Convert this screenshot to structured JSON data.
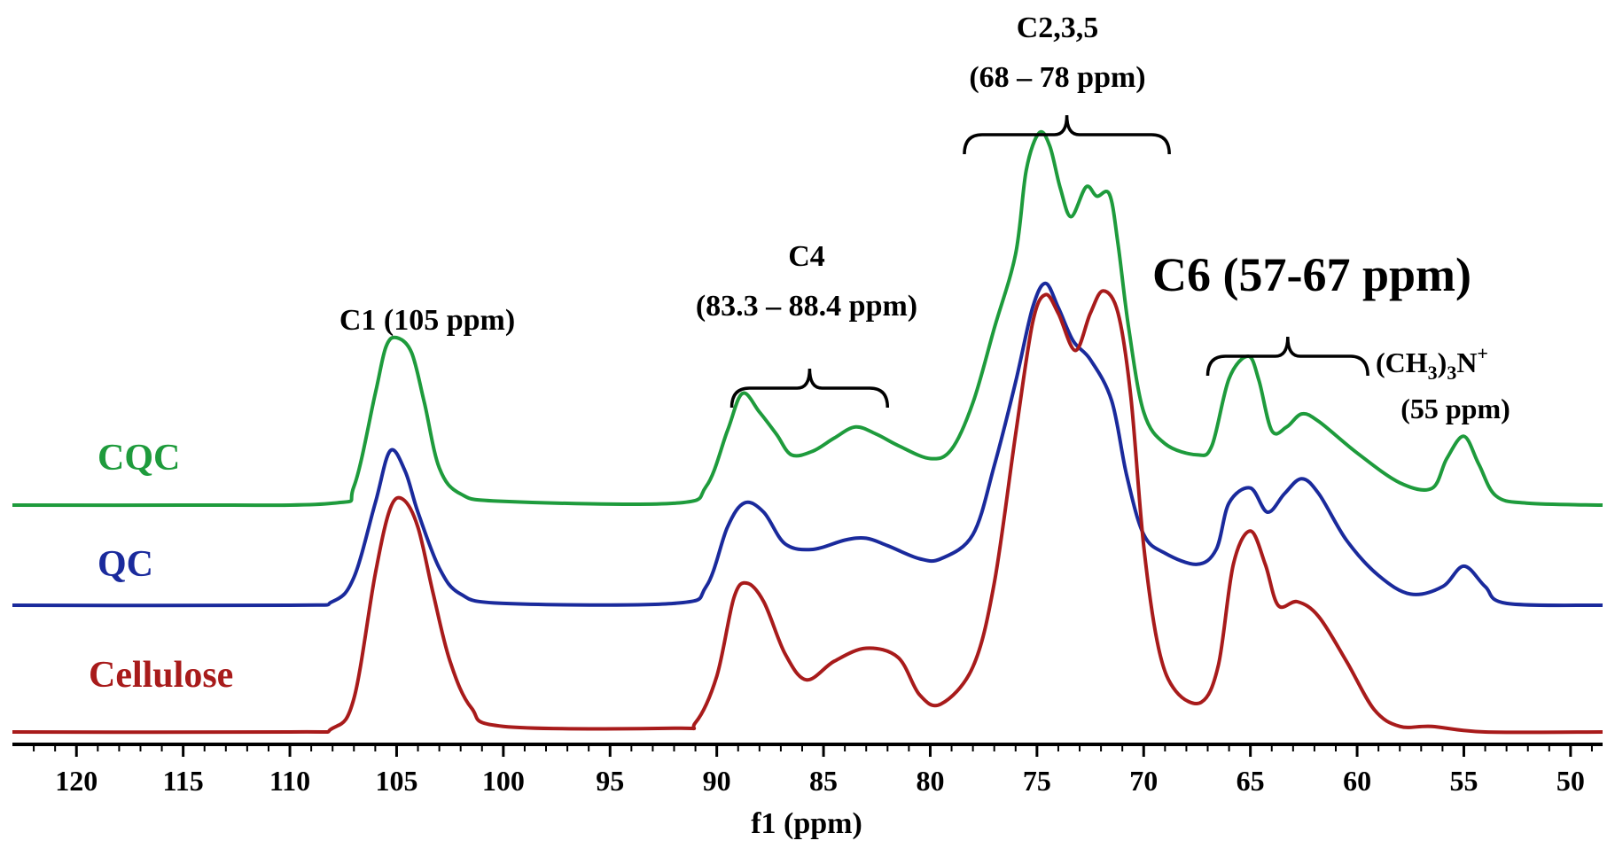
{
  "chart_data": {
    "type": "line",
    "xlabel": "f1 (ppm)",
    "xlim": [
      123,
      48.5
    ],
    "x_reversed": true,
    "xticks": [
      120,
      115,
      110,
      105,
      100,
      95,
      90,
      85,
      80,
      75,
      70,
      65,
      60,
      55,
      50
    ],
    "grid": false,
    "series": [
      {
        "name": "CQC",
        "color": "#1e9b3c",
        "baseline": 0,
        "points": [
          [
            123,
            0
          ],
          [
            115,
            0
          ],
          [
            108,
            0.01
          ],
          [
            107,
            0.1
          ],
          [
            106,
            0.6
          ],
          [
            105.5,
            0.85
          ],
          [
            105,
            0.9
          ],
          [
            104.3,
            0.82
          ],
          [
            103.7,
            0.55
          ],
          [
            103,
            0.2
          ],
          [
            102,
            0.06
          ],
          [
            100,
            0.02
          ],
          [
            92,
            0.01
          ],
          [
            90.5,
            0.1
          ],
          [
            89.5,
            0.4
          ],
          [
            88.8,
            0.6
          ],
          [
            88,
            0.5
          ],
          [
            87.2,
            0.38
          ],
          [
            86.5,
            0.27
          ],
          [
            85.5,
            0.29
          ],
          [
            84.5,
            0.36
          ],
          [
            83.5,
            0.42
          ],
          [
            82.5,
            0.38
          ],
          [
            81.5,
            0.32
          ],
          [
            80,
            0.25
          ],
          [
            79,
            0.3
          ],
          [
            78,
            0.55
          ],
          [
            77,
            0.95
          ],
          [
            76,
            1.35
          ],
          [
            75.5,
            1.8
          ],
          [
            74.9,
            2.0
          ],
          [
            74.4,
            1.93
          ],
          [
            73.9,
            1.7
          ],
          [
            73.4,
            1.55
          ],
          [
            72.7,
            1.71
          ],
          [
            72.2,
            1.66
          ],
          [
            71.6,
            1.67
          ],
          [
            71.2,
            1.4
          ],
          [
            70.7,
            0.95
          ],
          [
            70,
            0.5
          ],
          [
            69,
            0.33
          ],
          [
            67.5,
            0.27
          ],
          [
            66.8,
            0.32
          ],
          [
            66,
            0.68
          ],
          [
            65.1,
            0.8
          ],
          [
            64.6,
            0.67
          ],
          [
            64,
            0.4
          ],
          [
            63.3,
            0.42
          ],
          [
            62.6,
            0.49
          ],
          [
            61.8,
            0.45
          ],
          [
            60,
            0.28
          ],
          [
            58,
            0.12
          ],
          [
            56.5,
            0.09
          ],
          [
            55.8,
            0.25
          ],
          [
            55,
            0.37
          ],
          [
            54.3,
            0.22
          ],
          [
            53.5,
            0.05
          ],
          [
            52,
            0.01
          ],
          [
            48.5,
            0
          ]
        ]
      },
      {
        "name": "QC",
        "color": "#1a2a9c",
        "baseline": 0,
        "points": [
          [
            123,
            0
          ],
          [
            110,
            0
          ],
          [
            108,
            0.02
          ],
          [
            107,
            0.15
          ],
          [
            106,
            0.55
          ],
          [
            105.3,
            0.83
          ],
          [
            104.6,
            0.72
          ],
          [
            104,
            0.5
          ],
          [
            103,
            0.2
          ],
          [
            102,
            0.06
          ],
          [
            100,
            0.01
          ],
          [
            92,
            0.01
          ],
          [
            90.5,
            0.1
          ],
          [
            89.5,
            0.42
          ],
          [
            88.7,
            0.55
          ],
          [
            87.8,
            0.5
          ],
          [
            86.8,
            0.33
          ],
          [
            85.5,
            0.3
          ],
          [
            84,
            0.35
          ],
          [
            83,
            0.36
          ],
          [
            82,
            0.32
          ],
          [
            80.5,
            0.25
          ],
          [
            79.5,
            0.25
          ],
          [
            78,
            0.38
          ],
          [
            77,
            0.75
          ],
          [
            76,
            1.2
          ],
          [
            75.2,
            1.6
          ],
          [
            74.6,
            1.73
          ],
          [
            74,
            1.6
          ],
          [
            73.3,
            1.42
          ],
          [
            72.5,
            1.32
          ],
          [
            71.5,
            1.1
          ],
          [
            70.8,
            0.7
          ],
          [
            70,
            0.38
          ],
          [
            69,
            0.28
          ],
          [
            67.5,
            0.22
          ],
          [
            66.6,
            0.3
          ],
          [
            66,
            0.55
          ],
          [
            65,
            0.63
          ],
          [
            64.2,
            0.5
          ],
          [
            63.4,
            0.6
          ],
          [
            62.6,
            0.68
          ],
          [
            61.8,
            0.6
          ],
          [
            60.5,
            0.35
          ],
          [
            59,
            0.16
          ],
          [
            57.5,
            0.06
          ],
          [
            56,
            0.1
          ],
          [
            55,
            0.21
          ],
          [
            54,
            0.1
          ],
          [
            53,
            0.01
          ],
          [
            48.5,
            0
          ]
        ]
      },
      {
        "name": "Cellulose",
        "color": "#a81b1b",
        "baseline": 0,
        "points": [
          [
            123,
            0
          ],
          [
            110,
            0
          ],
          [
            108,
            0.02
          ],
          [
            107,
            0.18
          ],
          [
            106,
            0.85
          ],
          [
            105.3,
            1.2
          ],
          [
            104.7,
            1.25
          ],
          [
            104,
            1.1
          ],
          [
            103.3,
            0.75
          ],
          [
            102.5,
            0.38
          ],
          [
            101.5,
            0.13
          ],
          [
            100,
            0.03
          ],
          [
            92,
            0.02
          ],
          [
            91,
            0.05
          ],
          [
            90,
            0.3
          ],
          [
            89.2,
            0.72
          ],
          [
            88.6,
            0.8
          ],
          [
            87.8,
            0.7
          ],
          [
            86.8,
            0.42
          ],
          [
            85.8,
            0.28
          ],
          [
            84.5,
            0.38
          ],
          [
            83,
            0.45
          ],
          [
            81.5,
            0.4
          ],
          [
            80.5,
            0.2
          ],
          [
            79.5,
            0.15
          ],
          [
            78,
            0.35
          ],
          [
            77,
            0.8
          ],
          [
            76,
            1.6
          ],
          [
            75.2,
            2.2
          ],
          [
            74.6,
            2.35
          ],
          [
            74,
            2.25
          ],
          [
            73.2,
            2.05
          ],
          [
            72.5,
            2.25
          ],
          [
            71.9,
            2.37
          ],
          [
            71.2,
            2.25
          ],
          [
            70.6,
            1.8
          ],
          [
            70,
            1.0
          ],
          [
            69.3,
            0.45
          ],
          [
            68.5,
            0.22
          ],
          [
            67.3,
            0.16
          ],
          [
            66.5,
            0.36
          ],
          [
            65.8,
            0.9
          ],
          [
            65,
            1.08
          ],
          [
            64.3,
            0.9
          ],
          [
            63.7,
            0.68
          ],
          [
            62.8,
            0.7
          ],
          [
            61.8,
            0.62
          ],
          [
            60.5,
            0.38
          ],
          [
            59.2,
            0.12
          ],
          [
            58,
            0.03
          ],
          [
            56.5,
            0.03
          ],
          [
            54,
            0
          ],
          [
            48.5,
            0
          ]
        ]
      }
    ],
    "legend": [
      {
        "label": "CQC",
        "color": "#1e9b3c"
      },
      {
        "label": "QC",
        "color": "#1a2a9c"
      },
      {
        "label": "Cellulose",
        "color": "#a81b1b"
      }
    ],
    "annotations": [
      {
        "lines": [
          "C1 (105 ppm)"
        ]
      },
      {
        "lines": [
          "C4",
          "(83.3 – 88.4 ppm)"
        ]
      },
      {
        "lines": [
          "C2,3,5",
          "(68 – 78 ppm)"
        ]
      },
      {
        "lines": [
          "C6 (57-67 ppm)"
        ]
      },
      {
        "lines": [
          "(CH",
          "3",
          ")",
          "3",
          "N",
          "+",
          "(55 ppm)"
        ]
      }
    ],
    "brackets": [
      {
        "from": 89.3,
        "to": 82.0
      },
      {
        "from": 78.4,
        "to": 68.8
      },
      {
        "from": 67.0,
        "to": 59.5
      }
    ]
  }
}
